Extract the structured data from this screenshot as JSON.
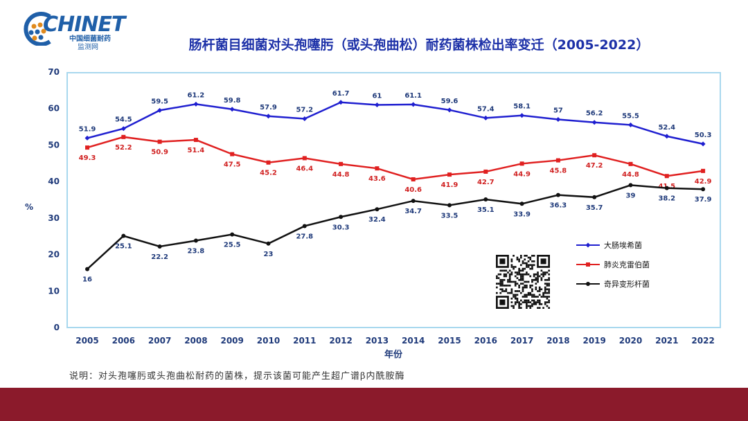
{
  "logo": {
    "brand": "CHINET",
    "sub1": "中国细菌耐药",
    "sub2": "监测网"
  },
  "title": "肠杆菌目细菌对头孢噻肟（或头孢曲松）耐药菌株检出率变迁（2005-2022）",
  "note": "说明：对头孢噻肟或头孢曲松耐药的菌株，提示该菌可能产生超广谱β内酰胺酶",
  "colors": {
    "footer": "#8b1a2b",
    "frame": "#a8d8ee",
    "title": "#1d31a8"
  },
  "chart_data": {
    "type": "line",
    "title": "肠杆菌目细菌对头孢噻肟（或头孢曲松）耐药菌株检出率变迁（2005-2022）",
    "xlabel": "年份",
    "ylabel": "%",
    "ylim": [
      0,
      70
    ],
    "yticks": [
      0,
      10,
      20,
      30,
      40,
      50,
      60,
      70
    ],
    "categories": [
      "2005",
      "2006",
      "2007",
      "2008",
      "2009",
      "2010",
      "2011",
      "2012",
      "2013",
      "2014",
      "2015",
      "2016",
      "2017",
      "2018",
      "2019",
      "2020",
      "2021",
      "2022"
    ],
    "legend_position": "right",
    "series": [
      {
        "name": "大肠埃希菌",
        "color": "#1f1fd0",
        "marker": "diamond",
        "label_color": "#1f3a7a",
        "label_pos": "above",
        "values": [
          51.9,
          54.5,
          59.5,
          61.2,
          59.8,
          57.9,
          57.2,
          61.7,
          61,
          61.1,
          59.6,
          57.4,
          58.1,
          57,
          56.2,
          55.5,
          52.4,
          50.3
        ]
      },
      {
        "name": "肺炎克雷伯菌",
        "color": "#e02020",
        "marker": "square",
        "label_color": "#d02020",
        "label_pos": "below",
        "values": [
          49.3,
          52.2,
          50.9,
          51.4,
          47.5,
          45.2,
          46.4,
          44.8,
          43.6,
          40.6,
          41.9,
          42.7,
          44.9,
          45.8,
          47.2,
          44.8,
          41.5,
          42.9
        ]
      },
      {
        "name": "奇异变形杆菌",
        "color": "#111111",
        "marker": "circle",
        "label_color": "#1f3a7a",
        "label_pos": "below",
        "values": [
          16,
          25.1,
          22.2,
          23.8,
          25.5,
          23,
          27.8,
          30.3,
          32.4,
          34.7,
          33.5,
          35.1,
          33.9,
          36.3,
          35.7,
          39,
          38.2,
          37.9
        ]
      }
    ]
  }
}
